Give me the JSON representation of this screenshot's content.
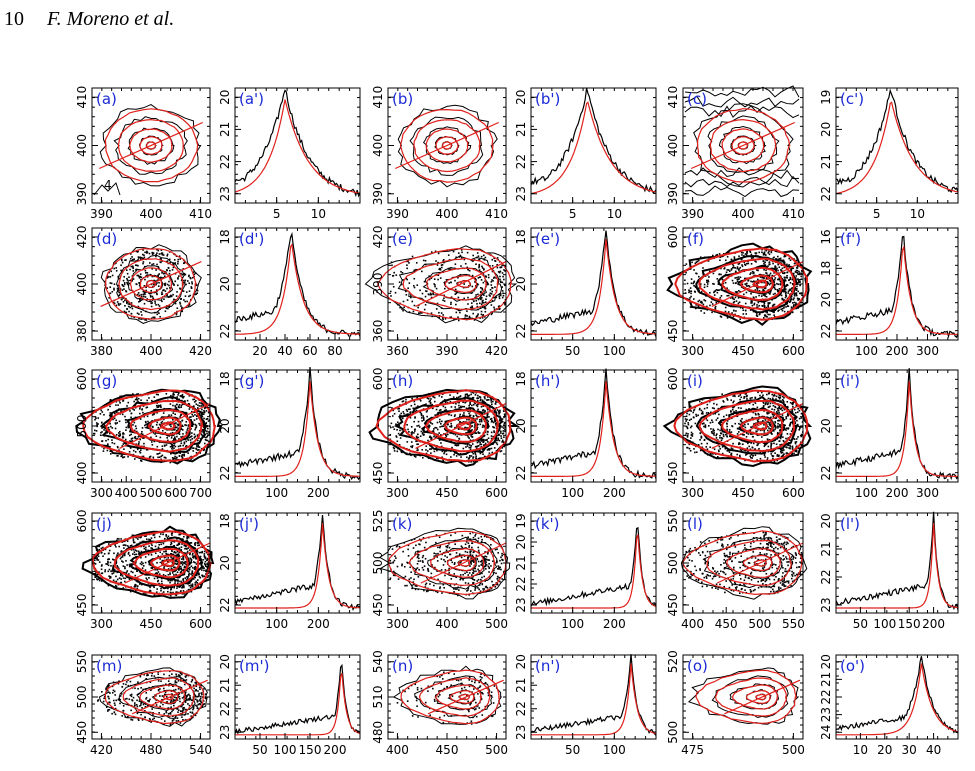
{
  "header": {
    "page_number": "10",
    "authors": "F. Moreno et al."
  },
  "colors": {
    "observed": "#000000",
    "model": "#e0201b",
    "panel_label": "#1b2ad6"
  },
  "panels": [
    {
      "label": "(a)",
      "kind": "map",
      "xticks": [
        "390",
        "400",
        "410"
      ],
      "yticks": [
        "390",
        "400",
        "410"
      ],
      "note": "4",
      "noise": "low"
    },
    {
      "label": "(a')",
      "kind": "profile",
      "xticks": [
        "5",
        "10"
      ],
      "yticks": [
        "20",
        "21",
        "22",
        "23"
      ],
      "peak": 0.4,
      "width": 0.3
    },
    {
      "label": "(b)",
      "kind": "map",
      "xticks": [
        "390",
        "400",
        "410"
      ],
      "yticks": [
        "390",
        "400",
        "410"
      ],
      "noise": "none"
    },
    {
      "label": "(b')",
      "kind": "profile",
      "xticks": [
        "5",
        "10"
      ],
      "yticks": [
        "20",
        "21",
        "22",
        "23"
      ],
      "peak": 0.45,
      "width": 0.3
    },
    {
      "label": "(c)",
      "kind": "map",
      "xticks": [
        "390",
        "400",
        "410"
      ],
      "yticks": [
        "390",
        "400",
        "410"
      ],
      "noise": "high"
    },
    {
      "label": "(c')",
      "kind": "profile",
      "xticks": [
        "5",
        "10"
      ],
      "yticks": [
        "19",
        "20",
        "21",
        "22"
      ],
      "peak": 0.45,
      "width": 0.3
    },
    {
      "label": "(d)",
      "kind": "map",
      "xticks": [
        "380",
        "400",
        "420"
      ],
      "yticks": [
        "380",
        "400",
        "420"
      ],
      "noise": "dots"
    },
    {
      "label": "(d')",
      "kind": "profile",
      "xticks": [
        "20",
        "40",
        "60",
        "80"
      ],
      "yticks": [
        "18",
        "20",
        "22"
      ],
      "peak": 0.45,
      "width": 0.15
    },
    {
      "label": "(e)",
      "kind": "tail",
      "xticks": [
        "360",
        "390",
        "420"
      ],
      "yticks": [
        "360",
        "390",
        "420"
      ],
      "noise": "dots"
    },
    {
      "label": "(e')",
      "kind": "profile",
      "xticks": [
        "50",
        "100"
      ],
      "yticks": [
        "18",
        "20",
        "22"
      ],
      "peak": 0.6,
      "width": 0.12
    },
    {
      "label": "(f)",
      "kind": "tail",
      "xticks": [
        "300",
        "450",
        "600"
      ],
      "yticks": [
        "450",
        "600"
      ],
      "noise": "dense"
    },
    {
      "label": "(f')",
      "kind": "profile",
      "xticks": [
        "100",
        "200",
        "300"
      ],
      "yticks": [
        "16",
        "18",
        "20",
        "22"
      ],
      "peak": 0.55,
      "width": 0.1
    },
    {
      "label": "(g)",
      "kind": "tail",
      "xticks": [
        "300",
        "400",
        "500",
        "600",
        "700"
      ],
      "yticks": [
        "400",
        "500",
        "600"
      ],
      "noise": "dense"
    },
    {
      "label": "(g')",
      "kind": "profile",
      "xticks": [
        "100",
        "200"
      ],
      "yticks": [
        "18",
        "20",
        "22"
      ],
      "peak": 0.6,
      "width": 0.1
    },
    {
      "label": "(h)",
      "kind": "tail",
      "xticks": [
        "300",
        "450",
        "600"
      ],
      "yticks": [
        "450",
        "600"
      ],
      "noise": "dense"
    },
    {
      "label": "(h')",
      "kind": "profile",
      "xticks": [
        "100",
        "200"
      ],
      "yticks": [
        "18",
        "20",
        "22"
      ],
      "peak": 0.6,
      "width": 0.1
    },
    {
      "label": "(i)",
      "kind": "tail",
      "xticks": [
        "300",
        "450",
        "600"
      ],
      "yticks": [
        "450",
        "600"
      ],
      "noise": "dense"
    },
    {
      "label": "(i')",
      "kind": "profile",
      "xticks": [
        "100",
        "200",
        "300"
      ],
      "yticks": [
        "18",
        "20",
        "22"
      ],
      "peak": 0.6,
      "width": 0.08
    },
    {
      "label": "(j)",
      "kind": "tail",
      "xticks": [
        "300",
        "450",
        "600"
      ],
      "yticks": [
        "450",
        "600"
      ],
      "noise": "dense"
    },
    {
      "label": "(j')",
      "kind": "profile",
      "xticks": [
        "100",
        "200"
      ],
      "yticks": [
        "18",
        "20",
        "22"
      ],
      "peak": 0.7,
      "width": 0.08
    },
    {
      "label": "(k)",
      "kind": "tail",
      "xticks": [
        "300",
        "400",
        "500"
      ],
      "yticks": [
        "450",
        "500",
        "525"
      ],
      "noise": "dots"
    },
    {
      "label": "(k')",
      "kind": "profile",
      "xticks": [
        "100",
        "200"
      ],
      "yticks": [
        "19",
        "20",
        "21",
        "22",
        "23"
      ],
      "peak": 0.85,
      "width": 0.06
    },
    {
      "label": "(l)",
      "kind": "tail",
      "xticks": [
        "400",
        "450",
        "500",
        "550"
      ],
      "yticks": [
        "450",
        "500",
        "550"
      ],
      "noise": "dots"
    },
    {
      "label": "(l')",
      "kind": "profile",
      "xticks": [
        "50",
        "100",
        "150",
        "200"
      ],
      "yticks": [
        "20",
        "21",
        "22",
        "23"
      ],
      "peak": 0.8,
      "width": 0.06
    },
    {
      "label": "(m)",
      "kind": "tail",
      "xticks": [
        "420",
        "480",
        "540"
      ],
      "yticks": [
        "450",
        "500",
        "550"
      ],
      "noise": "dots"
    },
    {
      "label": "(m')",
      "kind": "profile",
      "xticks": [
        "50",
        "100",
        "150",
        "200"
      ],
      "yticks": [
        "20",
        "21",
        "22",
        "23"
      ],
      "peak": 0.85,
      "width": 0.06
    },
    {
      "label": "(n)",
      "kind": "tail",
      "xticks": [
        "400",
        "450",
        "500"
      ],
      "yticks": [
        "480",
        "510",
        "540"
      ],
      "noise": "sparse"
    },
    {
      "label": "(n')",
      "kind": "profile",
      "xticks": [
        "50",
        "100"
      ],
      "yticks": [
        "20",
        "21",
        "22",
        "23"
      ],
      "peak": 0.8,
      "width": 0.08
    },
    {
      "label": "(o)",
      "kind": "tail",
      "xticks": [
        "475",
        "500"
      ],
      "yticks": [
        "500",
        "520"
      ],
      "noise": "contour"
    },
    {
      "label": "(o')",
      "kind": "profile",
      "xticks": [
        "10",
        "20",
        "30",
        "40"
      ],
      "yticks": [
        "20",
        "21",
        "22",
        "23",
        "24"
      ],
      "peak": 0.7,
      "width": 0.15
    }
  ]
}
